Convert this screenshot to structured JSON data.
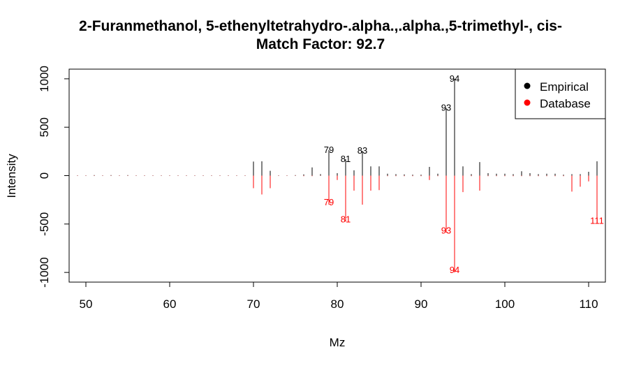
{
  "chart_data": {
    "type": "bar",
    "title": "2-Furanmethanol, 5-ethenyltetrahydro-.alpha.,.alpha.,5-trimethyl-, cis-",
    "subtitle": "Match Factor: 92.7",
    "xlabel": "Mz",
    "ylabel": "Intensity",
    "xlim": [
      48,
      112
    ],
    "ylim": [
      -1100,
      1100
    ],
    "x_ticks": [
      50,
      60,
      70,
      80,
      90,
      100,
      110
    ],
    "y_ticks": [
      -1000,
      -500,
      0,
      500,
      1000
    ],
    "grid": false,
    "legend_position": "top-right",
    "colors": {
      "empirical": "#000000",
      "database": "#ff0000"
    },
    "series": [
      {
        "name": "Empirical",
        "points": [
          [
            49,
            3
          ],
          [
            50,
            3
          ],
          [
            51,
            5
          ],
          [
            52,
            3
          ],
          [
            53,
            5
          ],
          [
            54,
            3
          ],
          [
            55,
            5
          ],
          [
            56,
            3
          ],
          [
            57,
            3
          ],
          [
            58,
            3
          ],
          [
            59,
            3
          ],
          [
            60,
            3
          ],
          [
            61,
            3
          ],
          [
            62,
            3
          ],
          [
            63,
            3
          ],
          [
            64,
            3
          ],
          [
            65,
            3
          ],
          [
            66,
            3
          ],
          [
            67,
            3
          ],
          [
            68,
            3
          ],
          [
            69,
            3
          ],
          [
            70,
            145
          ],
          [
            71,
            148
          ],
          [
            72,
            50
          ],
          [
            73,
            3
          ],
          [
            74,
            3
          ],
          [
            75,
            5
          ],
          [
            76,
            12
          ],
          [
            77,
            85
          ],
          [
            78,
            15
          ],
          [
            79,
            265
          ],
          [
            80,
            25
          ],
          [
            81,
            170
          ],
          [
            82,
            55
          ],
          [
            83,
            255
          ],
          [
            84,
            95
          ],
          [
            85,
            95
          ],
          [
            86,
            20
          ],
          [
            87,
            15
          ],
          [
            88,
            12
          ],
          [
            89,
            10
          ],
          [
            90,
            10
          ],
          [
            91,
            90
          ],
          [
            92,
            20
          ],
          [
            93,
            700
          ],
          [
            94,
            1000
          ],
          [
            95,
            95
          ],
          [
            96,
            15
          ],
          [
            97,
            140
          ],
          [
            98,
            25
          ],
          [
            99,
            20
          ],
          [
            100,
            20
          ],
          [
            101,
            15
          ],
          [
            102,
            45
          ],
          [
            103,
            25
          ],
          [
            104,
            15
          ],
          [
            105,
            20
          ],
          [
            106,
            20
          ],
          [
            107,
            10
          ],
          [
            108,
            15
          ],
          [
            109,
            15
          ],
          [
            110,
            40
          ],
          [
            111,
            148
          ],
          [
            112,
            90
          ]
        ],
        "peak_labels": [
          [
            79,
            265
          ],
          [
            81,
            170
          ],
          [
            83,
            255
          ],
          [
            93,
            700
          ],
          [
            94,
            1000
          ]
        ]
      },
      {
        "name": "Database",
        "points": [
          [
            49,
            -3
          ],
          [
            50,
            -3
          ],
          [
            51,
            -3
          ],
          [
            52,
            -3
          ],
          [
            53,
            -3
          ],
          [
            54,
            -3
          ],
          [
            55,
            -3
          ],
          [
            56,
            -3
          ],
          [
            57,
            -3
          ],
          [
            58,
            -3
          ],
          [
            59,
            -3
          ],
          [
            60,
            -3
          ],
          [
            61,
            -3
          ],
          [
            62,
            -3
          ],
          [
            63,
            -3
          ],
          [
            64,
            -3
          ],
          [
            65,
            -3
          ],
          [
            66,
            -3
          ],
          [
            67,
            -3
          ],
          [
            68,
            -3
          ],
          [
            69,
            -3
          ],
          [
            70,
            -130
          ],
          [
            71,
            -195
          ],
          [
            72,
            -130
          ],
          [
            73,
            -3
          ],
          [
            74,
            -3
          ],
          [
            75,
            -3
          ],
          [
            76,
            -5
          ],
          [
            77,
            -5
          ],
          [
            78,
            -3
          ],
          [
            79,
            -300
          ],
          [
            80,
            -45
          ],
          [
            81,
            -475
          ],
          [
            82,
            -155
          ],
          [
            83,
            -300
          ],
          [
            84,
            -155
          ],
          [
            85,
            -150
          ],
          [
            86,
            -5
          ],
          [
            87,
            -5
          ],
          [
            88,
            -5
          ],
          [
            89,
            -5
          ],
          [
            90,
            -5
          ],
          [
            91,
            -45
          ],
          [
            92,
            -5
          ],
          [
            93,
            -590
          ],
          [
            94,
            -1000
          ],
          [
            95,
            -170
          ],
          [
            96,
            -5
          ],
          [
            97,
            -155
          ],
          [
            98,
            -5
          ],
          [
            99,
            -5
          ],
          [
            100,
            -5
          ],
          [
            101,
            -5
          ],
          [
            102,
            -5
          ],
          [
            103,
            -5
          ],
          [
            104,
            -5
          ],
          [
            105,
            -5
          ],
          [
            106,
            -5
          ],
          [
            107,
            -5
          ],
          [
            108,
            -165
          ],
          [
            109,
            -115
          ],
          [
            110,
            -60
          ],
          [
            111,
            -490
          ],
          [
            112,
            -105
          ]
        ],
        "peak_labels": [
          [
            79,
            -300
          ],
          [
            81,
            -475
          ],
          [
            93,
            -590
          ],
          [
            94,
            -1000
          ],
          [
            111,
            -490
          ]
        ]
      }
    ]
  }
}
